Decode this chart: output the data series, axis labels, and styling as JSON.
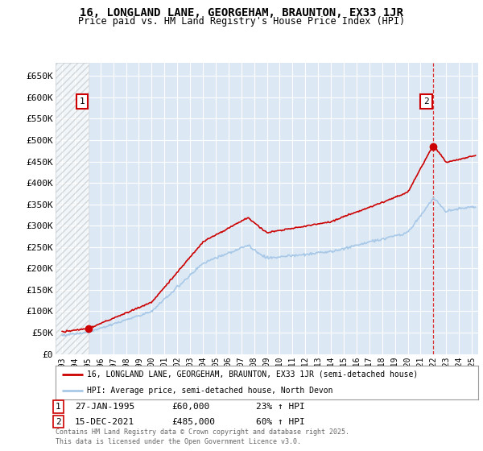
{
  "title": "16, LONGLAND LANE, GEORGEHAM, BRAUNTON, EX33 1JR",
  "subtitle": "Price paid vs. HM Land Registry's House Price Index (HPI)",
  "background_color": "#dce9f5",
  "plot_bg_color": "#dce9f5",
  "ylim": [
    0,
    680000
  ],
  "yticks": [
    0,
    50000,
    100000,
    150000,
    200000,
    250000,
    300000,
    350000,
    400000,
    450000,
    500000,
    550000,
    600000,
    650000
  ],
  "ytick_labels": [
    "£0",
    "£50K",
    "£100K",
    "£150K",
    "£200K",
    "£250K",
    "£300K",
    "£350K",
    "£400K",
    "£450K",
    "£500K",
    "£550K",
    "£600K",
    "£650K"
  ],
  "hpi_color": "#a8c8e8",
  "price_color": "#cc0000",
  "purchase1_date_num": 1995.08,
  "purchase1_price": 60000,
  "purchase2_date_num": 2021.96,
  "purchase2_price": 485000,
  "legend_label1": "16, LONGLAND LANE, GEORGEHAM, BRAUNTON, EX33 1JR (semi-detached house)",
  "legend_label2": "HPI: Average price, semi-detached house, North Devon",
  "footer": "Contains HM Land Registry data © Crown copyright and database right 2025.\nThis data is licensed under the Open Government Licence v3.0.",
  "xmin": 1992.5,
  "xmax": 2025.5
}
